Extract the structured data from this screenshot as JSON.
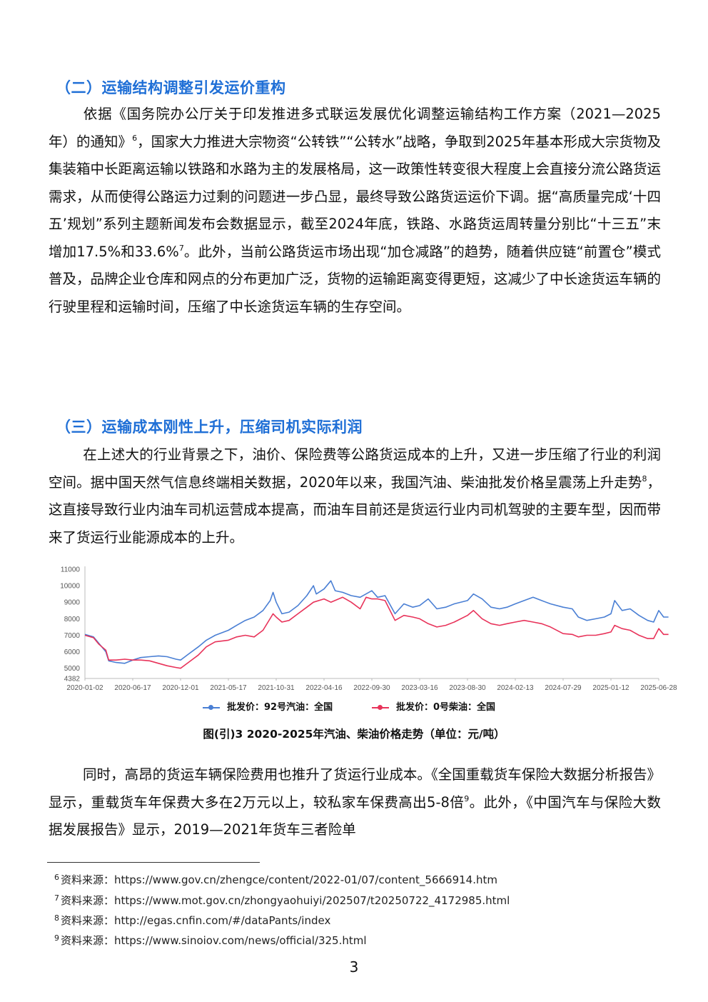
{
  "section2": {
    "heading": "（二）运输结构调整引发运价重构",
    "body_a": "依据《国务院办公厅关于印发推进多式联运发展优化调整运输结构工作方案（2021—2025年）的通知》",
    "fn_a": "6",
    "body_b": "，国家大力推进大宗物资“公转铁”“公转水”战略，争取到2025年基本形成大宗货物及集装箱中长距离运输以铁路和水路为主的发展格局，这一政策性转变很大程度上会直接分流公路货运需求，从而使得公路运力过剩的问题进一步凸显，最终导致公路货运运价下调。据“高质量完成‘十四五’规划”系列主题新闻发布会数据显示，截至2024年底，铁路、水路货运周转量分别比“十三五”末增加17.5%和33.6%",
    "fn_b": "7",
    "body_c": "。此外，当前公路货运市场出现“加仓减路”的趋势，随着供应链“前置仓”模式普及，品牌企业仓库和网点的分布更加广泛，货物的运输距离变得更短，这减少了中长途货运车辆的行驶里程和运输时间，压缩了中长途货运车辆的生存空间。"
  },
  "section3": {
    "heading": "（三）运输成本刚性上升，压缩司机实际利润",
    "body_a": "在上述大的行业背景之下，油价、保险费等公路货运成本的上升，又进一步压缩了行业的利润空间。据中国天然气信息终端相关数据，2020年以来，我国汽油、柴油批发价格呈震荡上升走势",
    "fn_a": "8",
    "body_b": "，这直接导致行业内油车司机运营成本提高，而油车目前还是货运行业内司机驾驶的主要车型，因而带来了货运行业能源成本的上升。"
  },
  "chart_data": {
    "type": "line",
    "title": "图(引)3   2020-2025年汽油、柴油价格走势（单位：元/吨）",
    "x_tick_labels": [
      "2020-01-02",
      "2020-06-17",
      "2020-12-01",
      "2021-05-17",
      "2021-10-31",
      "2022-04-16",
      "2022-09-30",
      "2023-03-16",
      "2023-08-30",
      "2024-02-13",
      "2024-07-29",
      "2025-01-12",
      "2025-06-28"
    ],
    "y_tick_labels": [
      "4382",
      "5000",
      "6000",
      "7000",
      "8000",
      "9000",
      "10000",
      "11000"
    ],
    "ylim": [
      4382,
      11000
    ],
    "grid": false,
    "legend_position": "bottom",
    "series": [
      {
        "name": "批发价：92号汽油：全国",
        "color": "#4a7fd4",
        "points": [
          [
            "2020-01-02",
            7050
          ],
          [
            "2020-02-01",
            6900
          ],
          [
            "2020-02-20",
            6500
          ],
          [
            "2020-03-15",
            6000
          ],
          [
            "2020-03-25",
            5450
          ],
          [
            "2020-04-20",
            5350
          ],
          [
            "2020-05-20",
            5300
          ],
          [
            "2020-06-17",
            5500
          ],
          [
            "2020-07-15",
            5650
          ],
          [
            "2020-08-15",
            5700
          ],
          [
            "2020-09-15",
            5750
          ],
          [
            "2020-10-15",
            5700
          ],
          [
            "2020-11-15",
            5550
          ],
          [
            "2020-12-01",
            5500
          ],
          [
            "2021-01-01",
            5900
          ],
          [
            "2021-02-01",
            6300
          ],
          [
            "2021-03-01",
            6700
          ],
          [
            "2021-04-01",
            7000
          ],
          [
            "2021-05-17",
            7300
          ],
          [
            "2021-06-15",
            7600
          ],
          [
            "2021-07-15",
            7900
          ],
          [
            "2021-08-15",
            8100
          ],
          [
            "2021-09-15",
            8500
          ],
          [
            "2021-10-10",
            9100
          ],
          [
            "2021-10-20",
            9600
          ],
          [
            "2021-10-31",
            9000
          ],
          [
            "2021-11-20",
            8300
          ],
          [
            "2021-12-15",
            8400
          ],
          [
            "2022-01-15",
            8800
          ],
          [
            "2022-02-15",
            9400
          ],
          [
            "2022-03-10",
            10000
          ],
          [
            "2022-03-20",
            9500
          ],
          [
            "2022-04-16",
            9800
          ],
          [
            "2022-05-10",
            10300
          ],
          [
            "2022-05-25",
            9700
          ],
          [
            "2022-06-20",
            9600
          ],
          [
            "2022-07-20",
            9400
          ],
          [
            "2022-08-20",
            9300
          ],
          [
            "2022-09-30",
            9700
          ],
          [
            "2022-10-20",
            9300
          ],
          [
            "2022-11-15",
            9400
          ],
          [
            "2022-12-20",
            8300
          ],
          [
            "2023-01-20",
            8900
          ],
          [
            "2023-02-20",
            8700
          ],
          [
            "2023-03-16",
            8800
          ],
          [
            "2023-04-15",
            9200
          ],
          [
            "2023-05-15",
            8600
          ],
          [
            "2023-06-15",
            8700
          ],
          [
            "2023-07-15",
            8900
          ],
          [
            "2023-08-30",
            9100
          ],
          [
            "2023-09-20",
            9500
          ],
          [
            "2023-10-20",
            9200
          ],
          [
            "2023-11-20",
            8700
          ],
          [
            "2023-12-20",
            8600
          ],
          [
            "2024-01-15",
            8700
          ],
          [
            "2024-02-13",
            8900
          ],
          [
            "2024-03-15",
            9100
          ],
          [
            "2024-04-15",
            9300
          ],
          [
            "2024-05-15",
            9100
          ],
          [
            "2024-06-15",
            8900
          ],
          [
            "2024-07-29",
            8700
          ],
          [
            "2024-08-30",
            8600
          ],
          [
            "2024-09-20",
            8100
          ],
          [
            "2024-10-20",
            7900
          ],
          [
            "2024-11-20",
            8000
          ],
          [
            "2024-12-20",
            8100
          ],
          [
            "2025-01-12",
            8300
          ],
          [
            "2025-01-25",
            9100
          ],
          [
            "2025-02-20",
            8500
          ],
          [
            "2025-03-20",
            8600
          ],
          [
            "2025-04-20",
            8200
          ],
          [
            "2025-05-20",
            7900
          ],
          [
            "2025-06-10",
            7800
          ],
          [
            "2025-06-28",
            8500
          ],
          [
            "2025-07-15",
            8100
          ],
          [
            "2025-08-01",
            8100
          ]
        ]
      },
      {
        "name": "批发价：0号柴油：全国",
        "color": "#e8335a",
        "points": [
          [
            "2020-01-02",
            7000
          ],
          [
            "2020-02-01",
            6850
          ],
          [
            "2020-02-20",
            6450
          ],
          [
            "2020-03-15",
            6100
          ],
          [
            "2020-03-25",
            5500
          ],
          [
            "2020-04-20",
            5500
          ],
          [
            "2020-05-20",
            5550
          ],
          [
            "2020-06-17",
            5500
          ],
          [
            "2020-07-15",
            5500
          ],
          [
            "2020-08-15",
            5450
          ],
          [
            "2020-09-15",
            5300
          ],
          [
            "2020-10-15",
            5150
          ],
          [
            "2020-11-15",
            5050
          ],
          [
            "2020-12-01",
            5000
          ],
          [
            "2021-01-01",
            5400
          ],
          [
            "2021-02-01",
            5800
          ],
          [
            "2021-03-01",
            6300
          ],
          [
            "2021-04-01",
            6600
          ],
          [
            "2021-05-17",
            6700
          ],
          [
            "2021-06-15",
            6900
          ],
          [
            "2021-07-15",
            7000
          ],
          [
            "2021-08-15",
            6900
          ],
          [
            "2021-09-15",
            7300
          ],
          [
            "2021-10-20",
            8300
          ],
          [
            "2021-10-31",
            8100
          ],
          [
            "2021-11-20",
            7800
          ],
          [
            "2021-12-15",
            7900
          ],
          [
            "2022-01-15",
            8300
          ],
          [
            "2022-02-15",
            8700
          ],
          [
            "2022-03-10",
            9000
          ],
          [
            "2022-04-16",
            9200
          ],
          [
            "2022-05-10",
            9000
          ],
          [
            "2022-06-20",
            9300
          ],
          [
            "2022-07-20",
            9000
          ],
          [
            "2022-08-20",
            8600
          ],
          [
            "2022-09-10",
            9300
          ],
          [
            "2022-09-30",
            9200
          ],
          [
            "2022-10-20",
            9200
          ],
          [
            "2022-11-15",
            9100
          ],
          [
            "2022-12-20",
            7900
          ],
          [
            "2023-01-20",
            8200
          ],
          [
            "2023-02-20",
            8100
          ],
          [
            "2023-03-16",
            8000
          ],
          [
            "2023-04-15",
            7700
          ],
          [
            "2023-05-15",
            7500
          ],
          [
            "2023-06-15",
            7600
          ],
          [
            "2023-07-15",
            7800
          ],
          [
            "2023-08-30",
            8200
          ],
          [
            "2023-09-20",
            8500
          ],
          [
            "2023-10-20",
            8000
          ],
          [
            "2023-11-20",
            7700
          ],
          [
            "2023-12-20",
            7600
          ],
          [
            "2024-01-15",
            7700
          ],
          [
            "2024-02-13",
            7800
          ],
          [
            "2024-03-15",
            7900
          ],
          [
            "2024-04-15",
            7800
          ],
          [
            "2024-05-15",
            7700
          ],
          [
            "2024-06-15",
            7500
          ],
          [
            "2024-07-29",
            7100
          ],
          [
            "2024-08-30",
            7050
          ],
          [
            "2024-09-20",
            6900
          ],
          [
            "2024-10-20",
            7000
          ],
          [
            "2024-11-20",
            7000
          ],
          [
            "2024-12-20",
            7100
          ],
          [
            "2025-01-12",
            7200
          ],
          [
            "2025-01-25",
            7600
          ],
          [
            "2025-02-20",
            7400
          ],
          [
            "2025-03-20",
            7300
          ],
          [
            "2025-04-20",
            7000
          ],
          [
            "2025-05-20",
            6800
          ],
          [
            "2025-06-10",
            6800
          ],
          [
            "2025-06-28",
            7400
          ],
          [
            "2025-07-15",
            7050
          ],
          [
            "2025-08-01",
            7050
          ]
        ]
      }
    ]
  },
  "caption": "图(引)3   2020-2025年汽油、柴油价格走势（单位：元/吨）",
  "section3b": {
    "body_a": "同时，高昂的货运车辆保险费用也推升了货运行业成本。《全国重载货车保险大数据分析报告》显示，重载货车年保费大多在2万元以上，较私家车保费高出5-8倍",
    "fn_a": "9",
    "body_b": "。此外，《中国汽车与保险大数据发展报告》显示，2019—2021年货车三者险单"
  },
  "footnotes": [
    {
      "num": "6",
      "label": "资料来源：",
      "url": "https://www.gov.cn/zhengce/content/2022-01/07/content_5666914.htm"
    },
    {
      "num": "7",
      "label": "资料来源：",
      "url": "https://www.mot.gov.cn/zhongyaohuiyi/202507/t20250722_4172985.html"
    },
    {
      "num": "8",
      "label": "资料来源：",
      "url": "http://egas.cnfin.com/#/dataPants/index"
    },
    {
      "num": "9",
      "label": "资料来源：",
      "url": "https://www.sinoiov.com/news/official/325.html"
    }
  ],
  "page_number": "3"
}
